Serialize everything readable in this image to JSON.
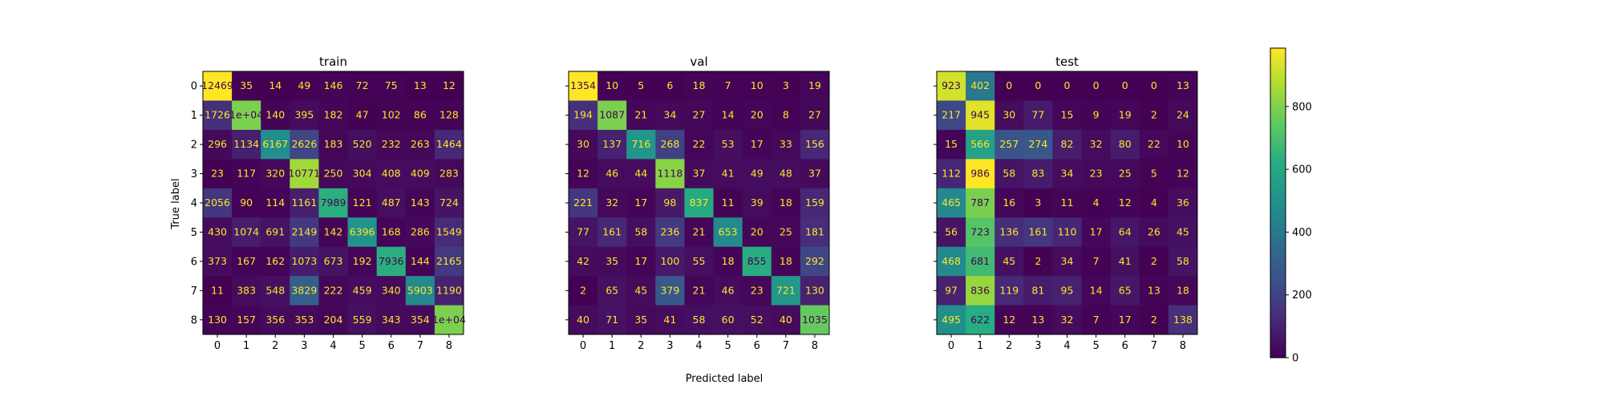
{
  "figure": {
    "xlabel": "Predicted label",
    "ylabel": "True label"
  },
  "chart_data": [
    {
      "type": "heatmap",
      "title": "train",
      "x_ticks": [
        "0",
        "1",
        "2",
        "3",
        "4",
        "5",
        "6",
        "7",
        "8"
      ],
      "y_ticks": [
        "0",
        "1",
        "2",
        "3",
        "4",
        "5",
        "6",
        "7",
        "8"
      ],
      "cell_labels": [
        [
          "12469",
          "35",
          "14",
          "49",
          "146",
          "72",
          "75",
          "13",
          "12"
        ],
        [
          "1726",
          "1e+04",
          "140",
          "395",
          "182",
          "47",
          "102",
          "86",
          "128"
        ],
        [
          "296",
          "1134",
          "6167",
          "2626",
          "183",
          "520",
          "232",
          "263",
          "1464"
        ],
        [
          "23",
          "117",
          "320",
          "10771",
          "250",
          "304",
          "408",
          "409",
          "283"
        ],
        [
          "2056",
          "90",
          "114",
          "1161",
          "7989",
          "121",
          "487",
          "143",
          "724"
        ],
        [
          "430",
          "1074",
          "691",
          "2149",
          "142",
          "6396",
          "168",
          "286",
          "1549"
        ],
        [
          "373",
          "167",
          "162",
          "1073",
          "673",
          "192",
          "7936",
          "144",
          "2165"
        ],
        [
          "11",
          "383",
          "548",
          "3829",
          "222",
          "459",
          "340",
          "5903",
          "1190"
        ],
        [
          "130",
          "157",
          "356",
          "353",
          "204",
          "559",
          "343",
          "354",
          "1e+04"
        ]
      ],
      "values": [
        [
          12469,
          35,
          14,
          49,
          146,
          72,
          75,
          13,
          12
        ],
        [
          1726,
          10000,
          140,
          395,
          182,
          47,
          102,
          86,
          128
        ],
        [
          296,
          1134,
          6167,
          2626,
          183,
          520,
          232,
          263,
          1464
        ],
        [
          23,
          117,
          320,
          10771,
          250,
          304,
          408,
          409,
          283
        ],
        [
          2056,
          90,
          114,
          1161,
          7989,
          121,
          487,
          143,
          724
        ],
        [
          430,
          1074,
          691,
          2149,
          142,
          6396,
          168,
          286,
          1549
        ],
        [
          373,
          167,
          162,
          1073,
          673,
          192,
          7936,
          144,
          2165
        ],
        [
          11,
          383,
          548,
          3829,
          222,
          459,
          340,
          5903,
          1190
        ],
        [
          130,
          157,
          356,
          353,
          204,
          559,
          343,
          354,
          10000
        ]
      ]
    },
    {
      "type": "heatmap",
      "title": "val",
      "x_ticks": [
        "0",
        "1",
        "2",
        "3",
        "4",
        "5",
        "6",
        "7",
        "8"
      ],
      "y_ticks": [
        "0",
        "1",
        "2",
        "3",
        "4",
        "5",
        "6",
        "7",
        "8"
      ],
      "cell_labels": [
        [
          "1354",
          "10",
          "5",
          "6",
          "18",
          "7",
          "10",
          "3",
          "19"
        ],
        [
          "194",
          "1087",
          "21",
          "34",
          "27",
          "14",
          "20",
          "8",
          "27"
        ],
        [
          "30",
          "137",
          "716",
          "268",
          "22",
          "53",
          "17",
          "33",
          "156"
        ],
        [
          "12",
          "46",
          "44",
          "1118",
          "37",
          "41",
          "49",
          "48",
          "37"
        ],
        [
          "221",
          "32",
          "17",
          "98",
          "837",
          "11",
          "39",
          "18",
          "159"
        ],
        [
          "77",
          "161",
          "58",
          "236",
          "21",
          "653",
          "20",
          "25",
          "181"
        ],
        [
          "42",
          "35",
          "17",
          "100",
          "55",
          "18",
          "855",
          "18",
          "292"
        ],
        [
          "2",
          "65",
          "45",
          "379",
          "21",
          "46",
          "23",
          "721",
          "130"
        ],
        [
          "40",
          "71",
          "35",
          "41",
          "58",
          "60",
          "52",
          "40",
          "1035"
        ]
      ],
      "values": [
        [
          1354,
          10,
          5,
          6,
          18,
          7,
          10,
          3,
          19
        ],
        [
          194,
          1087,
          21,
          34,
          27,
          14,
          20,
          8,
          27
        ],
        [
          30,
          137,
          716,
          268,
          22,
          53,
          17,
          33,
          156
        ],
        [
          12,
          46,
          44,
          1118,
          37,
          41,
          49,
          48,
          37
        ],
        [
          221,
          32,
          17,
          98,
          837,
          11,
          39,
          18,
          159
        ],
        [
          77,
          161,
          58,
          236,
          21,
          653,
          20,
          25,
          181
        ],
        [
          42,
          35,
          17,
          100,
          55,
          18,
          855,
          18,
          292
        ],
        [
          2,
          65,
          45,
          379,
          21,
          46,
          23,
          721,
          130
        ],
        [
          40,
          71,
          35,
          41,
          58,
          60,
          52,
          40,
          1035
        ]
      ]
    },
    {
      "type": "heatmap",
      "title": "test",
      "x_ticks": [
        "0",
        "1",
        "2",
        "3",
        "4",
        "5",
        "6",
        "7",
        "8"
      ],
      "y_ticks": [
        "0",
        "1",
        "2",
        "3",
        "4",
        "5",
        "6",
        "7",
        "8"
      ],
      "cell_labels": [
        [
          "923",
          "402",
          "0",
          "0",
          "0",
          "0",
          "0",
          "0",
          "13"
        ],
        [
          "217",
          "945",
          "30",
          "77",
          "15",
          "9",
          "19",
          "2",
          "24"
        ],
        [
          "15",
          "566",
          "257",
          "274",
          "82",
          "32",
          "80",
          "22",
          "10"
        ],
        [
          "112",
          "986",
          "58",
          "83",
          "34",
          "23",
          "25",
          "5",
          "12"
        ],
        [
          "465",
          "787",
          "16",
          "3",
          "11",
          "4",
          "12",
          "4",
          "36"
        ],
        [
          "56",
          "723",
          "136",
          "161",
          "110",
          "17",
          "64",
          "26",
          "45"
        ],
        [
          "468",
          "681",
          "45",
          "2",
          "34",
          "7",
          "41",
          "2",
          "58"
        ],
        [
          "97",
          "836",
          "119",
          "81",
          "95",
          "14",
          "65",
          "13",
          "18"
        ],
        [
          "495",
          "622",
          "12",
          "13",
          "32",
          "7",
          "17",
          "2",
          "138"
        ]
      ],
      "values": [
        [
          923,
          402,
          0,
          0,
          0,
          0,
          0,
          0,
          13
        ],
        [
          217,
          945,
          30,
          77,
          15,
          9,
          19,
          2,
          24
        ],
        [
          15,
          566,
          257,
          274,
          82,
          32,
          80,
          22,
          10
        ],
        [
          112,
          986,
          58,
          83,
          34,
          23,
          25,
          5,
          12
        ],
        [
          465,
          787,
          16,
          3,
          11,
          4,
          12,
          4,
          36
        ],
        [
          56,
          723,
          136,
          161,
          110,
          17,
          64,
          26,
          45
        ],
        [
          468,
          681,
          45,
          2,
          34,
          7,
          41,
          2,
          58
        ],
        [
          97,
          836,
          119,
          81,
          95,
          14,
          65,
          13,
          18
        ],
        [
          495,
          622,
          12,
          13,
          32,
          7,
          17,
          2,
          138
        ]
      ]
    }
  ],
  "colorbar": {
    "colormap": "viridis",
    "range": [
      0,
      986
    ],
    "ticks": [
      0,
      200,
      400,
      600,
      800
    ],
    "tick_labels": [
      "0",
      "200",
      "400",
      "600",
      "800"
    ]
  }
}
